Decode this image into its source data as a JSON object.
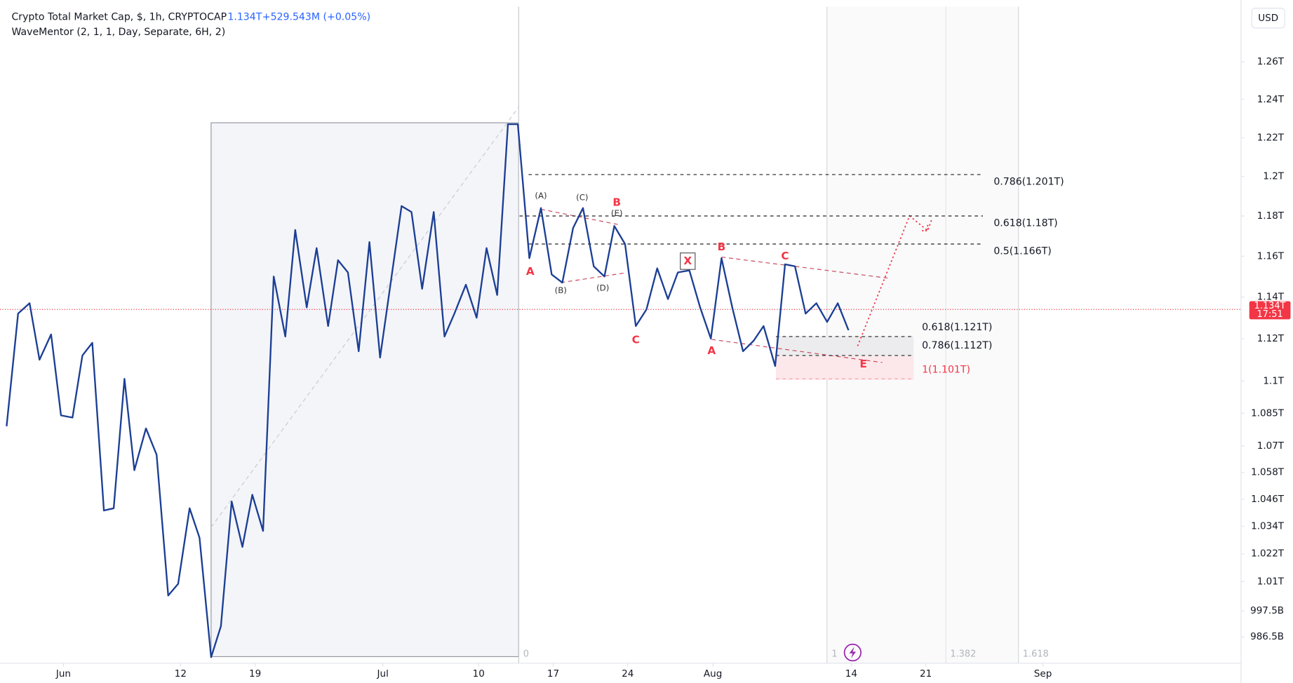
{
  "header": {
    "title": "Crypto Total Market Cap, $, 1h, CRYPTOCAP",
    "change": "+529.543M (+0.05%)",
    "indicator": "WaveMentor (2, 1, 1, Day, Separate, 6H, 2)",
    "currency": "USD"
  },
  "chart_data": {
    "type": "line",
    "log_scale": true,
    "grid": false,
    "x": [
      -5.34,
      -4.26,
      -3.18,
      -2.25,
      -1.16,
      -0.23,
      0.85,
      1.78,
      2.71,
      3.8,
      4.72,
      5.73,
      6.66,
      7.75,
      8.75,
      9.84,
      10.77,
      11.85,
      12.78,
      13.87,
      14.79,
      15.8,
      16.81,
      17.74,
      18.75,
      19.75,
      20.84,
      21.77,
      22.85,
      23.78,
      24.86,
      25.79,
      26.72,
      27.73,
      28.74,
      29.74,
      31.76,
      32.69,
      33.69,
      34.78,
      35.79,
      36.72,
      37.8,
      38.81,
      39.74,
      40.74,
      41.75,
      42.68,
      43.76,
      44.85,
      45.86,
      46.86,
      47.87,
      48.8,
      49.81,
      50.81,
      51.74,
      52.75,
      53.76,
      54.76,
      55.77,
      56.78,
      57.71,
      58.79,
      59.8,
      60.81,
      61.81,
      62.82,
      63.83,
      64.83,
      65.76,
      66.85,
      67.78,
      68.71,
      69.71,
      70.72,
      71.73,
      72.73,
      73.74
    ],
    "series": [
      {
        "color": "#1c3f94",
        "values": [
          1.079,
          1.132,
          1.137,
          1.11,
          1.122,
          1.084,
          1.083,
          1.112,
          1.118,
          1.041,
          1.042,
          1.101,
          1.059,
          1.078,
          1.066,
          1.004,
          1.009,
          1.042,
          1.029,
          0.978,
          0.991,
          1.045,
          1.025,
          1.048,
          1.032,
          1.15,
          1.121,
          1.173,
          1.135,
          1.164,
          1.126,
          1.158,
          1.152,
          1.114,
          1.167,
          1.111,
          1.185,
          1.182,
          1.144,
          1.182,
          1.121,
          1.132,
          1.146,
          1.13,
          1.164,
          1.141,
          1.227,
          1.227,
          1.159,
          1.184,
          1.151,
          1.147,
          1.174,
          1.184,
          1.155,
          1.15,
          1.175,
          1.166,
          1.126,
          1.134,
          1.154,
          1.139,
          1.152,
          1.153,
          1.135,
          1.12,
          1.159,
          1.135,
          1.114,
          1.119,
          1.126,
          1.107,
          1.156,
          1.155,
          1.132,
          1.137,
          1.128,
          1.137,
          1.124
        ]
      }
    ],
    "xlim": [
      -5.96,
      110.61
    ],
    "xticks": [
      {
        "value": 0,
        "label": "Jun"
      },
      {
        "value": 11,
        "label": "12"
      },
      {
        "value": 18,
        "label": "19"
      },
      {
        "value": 30,
        "label": "Jul"
      },
      {
        "value": 39,
        "label": "10"
      },
      {
        "value": 46,
        "label": "17"
      },
      {
        "value": 53,
        "label": "24"
      },
      {
        "value": 61,
        "label": "Aug"
      },
      {
        "value": 74,
        "label": "14"
      },
      {
        "value": 81,
        "label": "21"
      },
      {
        "value": 92,
        "label": "Sep"
      }
    ],
    "ylim": [
      0.9755,
      1.2936
    ],
    "yticks": [
      {
        "value": 1.26,
        "label": "1.26T"
      },
      {
        "value": 1.24,
        "label": "1.24T"
      },
      {
        "value": 1.22,
        "label": "1.22T"
      },
      {
        "value": 1.2,
        "label": "1.2T"
      },
      {
        "value": 1.18,
        "label": "1.18T"
      },
      {
        "value": 1.16,
        "label": "1.16T"
      },
      {
        "value": 1.14,
        "label": "1.14T"
      },
      {
        "value": 1.12,
        "label": "1.12T"
      },
      {
        "value": 1.1,
        "label": "1.1T"
      },
      {
        "value": 1.085,
        "label": "1.085T"
      },
      {
        "value": 1.07,
        "label": "1.07T"
      },
      {
        "value": 1.058,
        "label": "1.058T"
      },
      {
        "value": 1.046,
        "label": "1.046T"
      },
      {
        "value": 1.034,
        "label": "1.034T"
      },
      {
        "value": 1.022,
        "label": "1.022T"
      },
      {
        "value": 1.01,
        "label": "1.01T"
      },
      {
        "value": 0.9975,
        "label": "997.5B"
      },
      {
        "value": 0.9865,
        "label": "986.5B"
      }
    ],
    "last_price": {
      "value": 1.134,
      "label": "1.134T"
    },
    "countdown": "17:51",
    "fib_levels": [
      {
        "value": 1.201,
        "label": "0.786(1.201T)"
      },
      {
        "value": 1.18,
        "label": "0.618(1.18T)"
      },
      {
        "value": 1.166,
        "label": "0.5(1.166T)"
      },
      {
        "value": 1.121,
        "label": "0.618(1.121T)"
      },
      {
        "value": 1.112,
        "label": "0.786(1.112T)"
      },
      {
        "value": 1.101,
        "label": "1(1.101T)"
      }
    ],
    "wave_labels": [
      "A",
      "(A)",
      "(B)",
      "(C)",
      "(D)",
      "(E)",
      "B",
      "C",
      "X",
      "A",
      "B",
      "C",
      "E"
    ],
    "time_fib": [
      "0",
      "1",
      "1.382",
      "1.618"
    ]
  }
}
